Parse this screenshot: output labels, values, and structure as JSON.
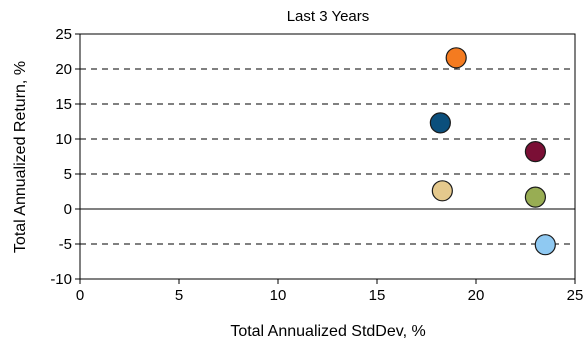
{
  "chart_data": {
    "type": "scatter",
    "title": "Last 3 Years",
    "xlabel": "Total Annualized StdDev, %",
    "ylabel": "Total Annualized Return, %",
    "xlim": [
      0,
      25
    ],
    "ylim": [
      -10,
      25
    ],
    "x_ticks": [
      "0",
      "5",
      "10",
      "15",
      "20",
      "25"
    ],
    "y_ticks": [
      "-10",
      "-5",
      "0",
      "5",
      "10",
      "15",
      "20",
      "25"
    ],
    "grid": "horizontal dashed",
    "legend": "none",
    "points": [
      {
        "x": 19.0,
        "y": 21.6,
        "color": "#f47b20"
      },
      {
        "x": 18.2,
        "y": 12.3,
        "color": "#0b4f7c"
      },
      {
        "x": 23.0,
        "y": 8.2,
        "color": "#7a0f35"
      },
      {
        "x": 18.3,
        "y": 2.6,
        "color": "#e5c98d"
      },
      {
        "x": 23.0,
        "y": 1.7,
        "color": "#98ad53"
      },
      {
        "x": 23.5,
        "y": -5.1,
        "color": "#8fc9f2"
      }
    ]
  }
}
